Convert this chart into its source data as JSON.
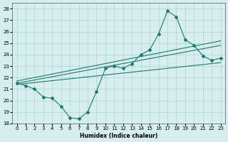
{
  "xlabel": "Humidex (Indice chaleur)",
  "xlim": [
    -0.5,
    23.5
  ],
  "ylim": [
    18,
    28.5
  ],
  "yticks": [
    18,
    19,
    20,
    21,
    22,
    23,
    24,
    25,
    26,
    27,
    28
  ],
  "xticks": [
    0,
    1,
    2,
    3,
    4,
    5,
    6,
    7,
    8,
    9,
    10,
    11,
    12,
    13,
    14,
    15,
    16,
    17,
    18,
    19,
    20,
    21,
    22,
    23
  ],
  "bg_color": "#d6eeee",
  "grid_color": "#b0d0d0",
  "line_color": "#1a7a6a",
  "main_x": [
    0,
    1,
    2,
    3,
    4,
    5,
    6,
    7,
    8,
    9,
    10,
    11,
    12,
    13,
    14,
    15,
    16,
    17,
    18,
    19,
    20,
    21,
    22,
    23
  ],
  "main_y": [
    21.5,
    21.3,
    21.0,
    20.3,
    20.2,
    19.5,
    18.5,
    18.4,
    19.0,
    20.8,
    22.8,
    23.0,
    22.8,
    23.2,
    24.0,
    24.4,
    25.8,
    27.8,
    27.3,
    25.3,
    24.8,
    23.9,
    23.5,
    23.7
  ],
  "trend1_x": [
    0,
    23
  ],
  "trend1_y": [
    21.5,
    24.8
  ],
  "trend2_x": [
    0,
    23
  ],
  "trend2_y": [
    21.7,
    25.2
  ],
  "trend3_x": [
    0,
    23
  ],
  "trend3_y": [
    21.4,
    23.3
  ]
}
